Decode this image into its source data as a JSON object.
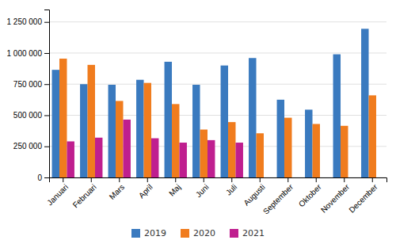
{
  "chart_data": {
    "type": "bar",
    "categories": [
      "Januari",
      "Februari",
      "Mars",
      "April",
      "Maj",
      "Juni",
      "Juli",
      "Augusti",
      "September",
      "Oktober",
      "November",
      "December"
    ],
    "series": [
      {
        "name": "2019",
        "color": "#3a7abf",
        "values": [
          865000,
          750000,
          745000,
          785000,
          930000,
          745000,
          900000,
          960000,
          625000,
          545000,
          990000,
          1195000
        ]
      },
      {
        "name": "2020",
        "color": "#f07c1e",
        "values": [
          955000,
          905000,
          615000,
          760000,
          590000,
          385000,
          445000,
          355000,
          480000,
          430000,
          415000,
          660000
        ]
      },
      {
        "name": "2021",
        "color": "#bf1f8f",
        "values": [
          290000,
          320000,
          465000,
          315000,
          280000,
          300000,
          280000,
          0,
          0,
          0,
          0,
          0
        ]
      }
    ],
    "ylim": [
      0,
      1350000
    ],
    "yticks": [
      0,
      {
        "value": 250000,
        "label": "250 000"
      },
      {
        "value": 500000,
        "label": "500 000"
      },
      {
        "value": 750000,
        "label": "750 000"
      },
      {
        "value": 1000000,
        "label": "1 000 000"
      },
      {
        "value": 1250000,
        "label": "1 250 000"
      }
    ],
    "grid": true,
    "legend": "bottom"
  }
}
